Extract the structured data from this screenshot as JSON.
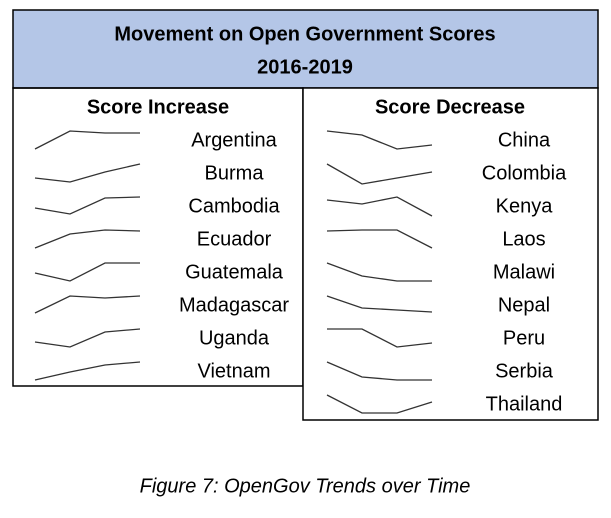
{
  "title": {
    "line1": "Movement on Open Government Scores",
    "line2": "2016-2019"
  },
  "increase": {
    "heading": "Score Increase",
    "rows": [
      {
        "name": "Argentina",
        "values": [
          1,
          10,
          9,
          9
        ]
      },
      {
        "name": "Burma",
        "values": [
          3,
          1,
          6,
          10
        ]
      },
      {
        "name": "Cambodia",
        "values": [
          4.5,
          1.5,
          9.5,
          10
        ]
      },
      {
        "name": "Ecuador",
        "values": [
          1,
          8,
          10,
          9.5
        ]
      },
      {
        "name": "Guatemala",
        "values": [
          5,
          1,
          10,
          10
        ]
      },
      {
        "name": "Madagascar",
        "values": [
          1.5,
          10,
          9,
          10
        ]
      },
      {
        "name": "Uganda",
        "values": [
          3.5,
          1,
          8.5,
          10
        ]
      },
      {
        "name": "Vietnam",
        "values": [
          1,
          5,
          8.5,
          10
        ]
      }
    ]
  },
  "decrease": {
    "heading": "Score Decrease",
    "rows": [
      {
        "name": "China",
        "values": [
          10,
          8,
          1,
          3
        ]
      },
      {
        "name": "Colombia",
        "values": [
          10,
          0,
          3,
          6
        ]
      },
      {
        "name": "Kenya",
        "values": [
          8.5,
          6.5,
          10,
          0.5
        ]
      },
      {
        "name": "Laos",
        "values": [
          9.5,
          10,
          10,
          1
        ]
      },
      {
        "name": "Malawi",
        "values": [
          10,
          3.5,
          1,
          1
        ]
      },
      {
        "name": "Nepal",
        "values": [
          10,
          4,
          3,
          2
        ]
      },
      {
        "name": "Peru",
        "values": [
          10,
          10,
          1,
          3
        ]
      },
      {
        "name": "Serbia",
        "values": [
          10,
          2.5,
          1,
          1
        ]
      },
      {
        "name": "Thailand",
        "values": [
          10,
          1,
          1,
          6.5
        ]
      }
    ]
  },
  "caption": "Figure 7: OpenGov Trends over Time"
}
